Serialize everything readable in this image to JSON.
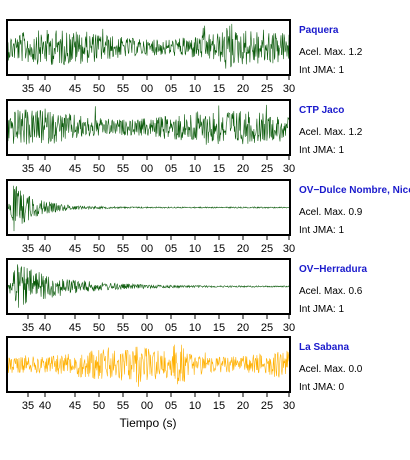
{
  "chart_data": {
    "type": "line",
    "xlabel": "Tiempo (s)",
    "x_tick_labels": [
      "35",
      "40",
      "45",
      "50",
      "55",
      "00",
      "05",
      "10",
      "15",
      "20",
      "25",
      "30"
    ],
    "info_labels": {
      "accel": "Acel. Max.",
      "intensity": "Int JMA:"
    },
    "colors": {
      "active": "#0a5a0a",
      "inactive": "#ffb000",
      "station_name": "#1a1acc"
    },
    "stations": [
      {
        "name": "Paquera",
        "accel_max": "1.2",
        "int_jma": "1",
        "color": "#0a5a0a",
        "pattern": "sustained-noise"
      },
      {
        "name": "CTP Jaco",
        "accel_max": "1.2",
        "int_jma": "1",
        "color": "#0a5a0a",
        "pattern": "sustained-noise"
      },
      {
        "name": "OV−Dulce Nombre, Nicoya",
        "accel_max": "0.9",
        "int_jma": "1",
        "color": "#0a5a0a",
        "pattern": "decaying"
      },
      {
        "name": "OV−Herradura",
        "accel_max": "0.6",
        "int_jma": "1",
        "color": "#0a5a0a",
        "pattern": "decaying"
      },
      {
        "name": "La Sabana",
        "accel_max": "0.0",
        "int_jma": "0",
        "color": "#ffb000",
        "pattern": "sustained-noise"
      }
    ]
  }
}
